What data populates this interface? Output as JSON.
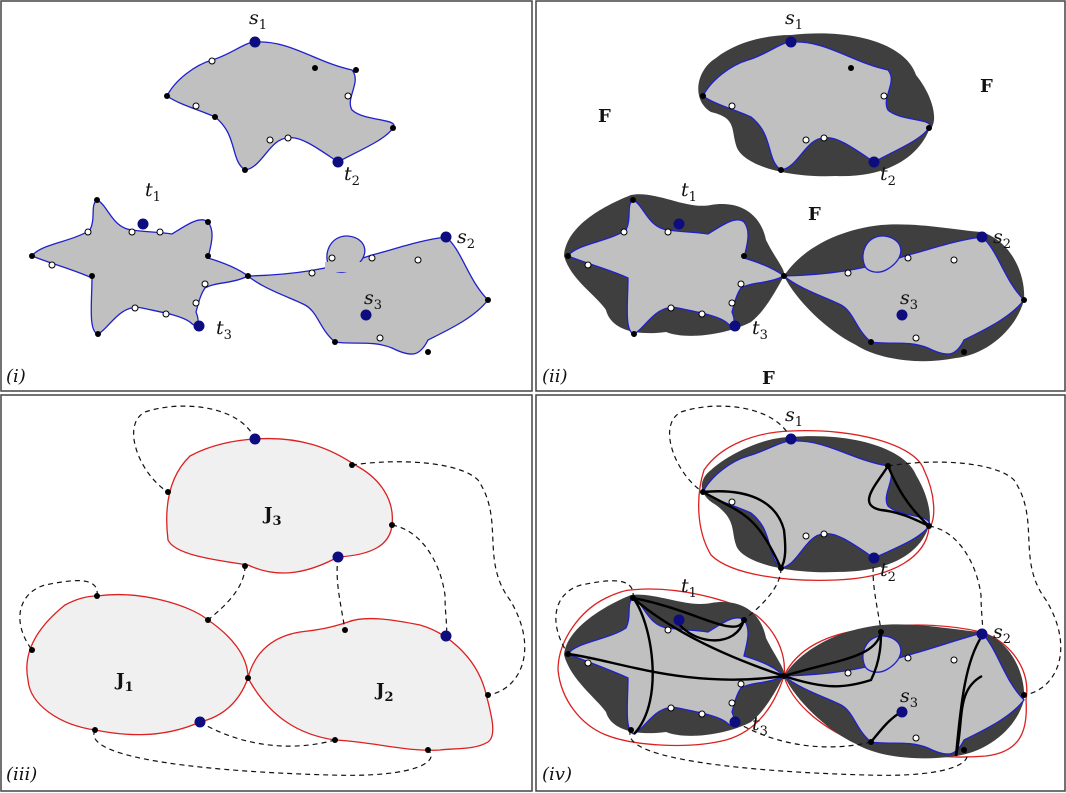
{
  "panels": [
    {
      "tag": "(i)"
    },
    {
      "tag": "(ii)"
    },
    {
      "tag": "(iii)"
    },
    {
      "tag": "(iv)"
    }
  ],
  "labels": {
    "s": "s",
    "t": "t",
    "one": "1",
    "two": "2",
    "three": "3",
    "F": "F",
    "J": "J"
  },
  "colors": {
    "light_region": "#c0c0c0",
    "very_light_region": "#f0f0f0",
    "dark_region": "#3f3f3f",
    "blue_boundary": "#2020cc",
    "red_boundary": "#dd2020",
    "terminal_point": "#0d0d80",
    "frame": "#444444"
  }
}
